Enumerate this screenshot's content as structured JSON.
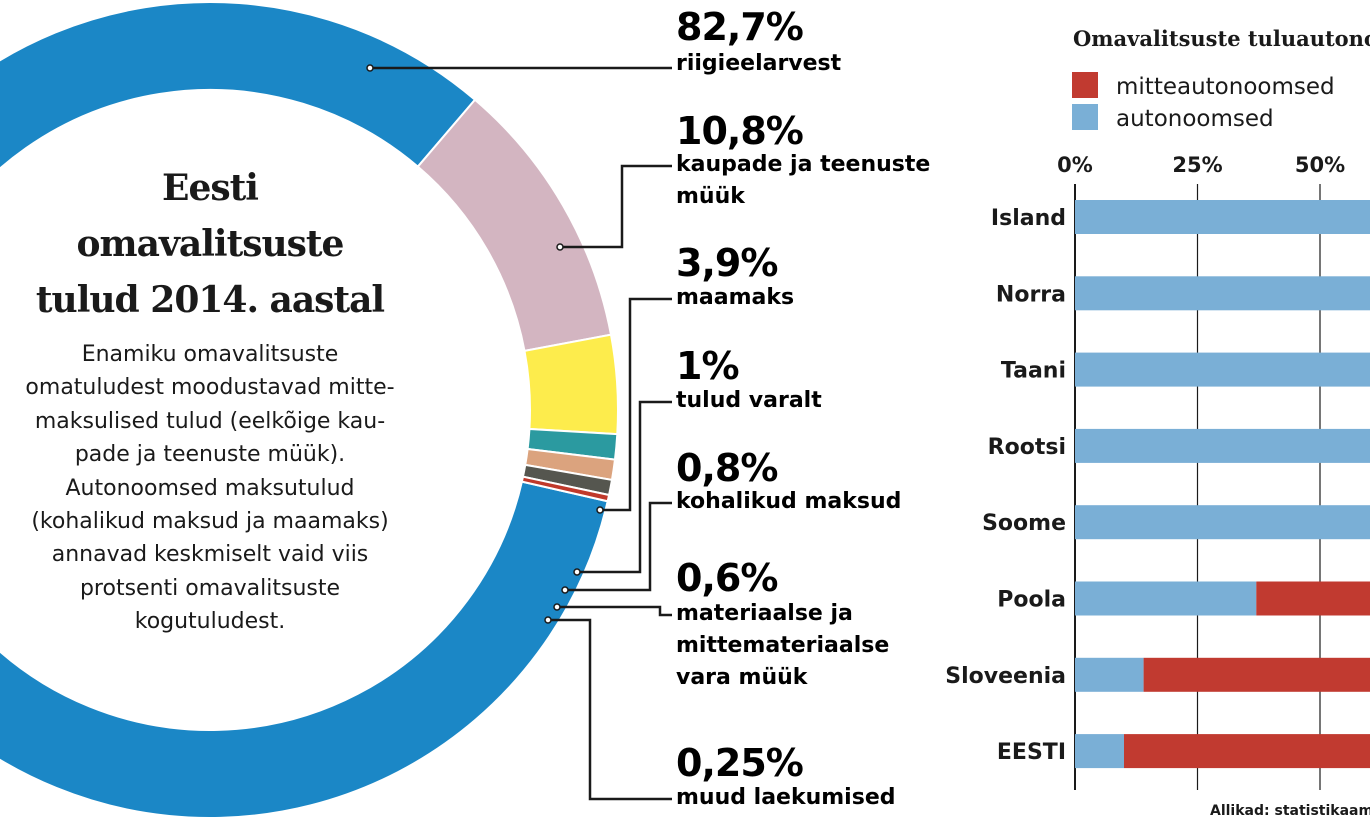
{
  "donut": {
    "title_lines": [
      "Eesti",
      "omavalitsuste",
      "tulud 2014. aastal"
    ],
    "description": "Enamiku omavalitsuste omatuludest moodustavad mitte-maksulised tulud (eelkõige kaupade ja teenuste müük). Autonoomsed maksutulud (kohalikud maksud ja maamaks) annavad keskmiselt vaid viis protsenti omavalitsuste kogutuludest.",
    "description_lines": [
      "Enamiku omavalitsuste",
      "omatuludest moodustavad mitte-",
      "maksulised tulud (eelkõige kau-",
      "pade ja teenuste müük).",
      "Autonoomsed maksutulud",
      "(kohalikud maksud ja maamaks)",
      "annavad keskmiselt vaid viis",
      "protsenti omavalitsuste",
      "kogutuludest."
    ]
  },
  "bar": {
    "title": "Omavalitsuste tuluautonoomsus",
    "source": "Allikad: statistikaamet",
    "ticks": [
      "0%",
      "25%",
      "50%"
    ]
  },
  "chart_data": [
    {
      "type": "pie",
      "title": "Eesti omavalitsuste tulud 2014. aastal",
      "slices": [
        {
          "label": "riigieelarvest",
          "value_text": "82,7%",
          "value": 82.7,
          "color": "#1b87c6"
        },
        {
          "label": "kaupade ja teenuste müük",
          "value_text": "10,8%",
          "value": 10.8,
          "color": "#d3b5c1"
        },
        {
          "label": "maamaks",
          "value_text": "3,9%",
          "value": 3.9,
          "color": "#fdec4c"
        },
        {
          "label": "tulud varalt",
          "value_text": "1%",
          "value": 1.0,
          "color": "#2b9aa0"
        },
        {
          "label": "kohalikud maksud",
          "value_text": "0,8%",
          "value": 0.8,
          "color": "#dba37e"
        },
        {
          "label": "materiaalse ja mittemateriaalse vara müük",
          "value_text": "0,6%",
          "value": 0.6,
          "color": "#55564f"
        },
        {
          "label": "muud laekumised",
          "value_text": "0,25%",
          "value": 0.25,
          "color": "#c0392b"
        }
      ]
    },
    {
      "type": "bar",
      "title": "Omavalitsuste tuluautonoomsus",
      "orientation": "horizontal",
      "stacked": true,
      "categories": [
        "Island",
        "Norra",
        "Taani",
        "Rootsi",
        "Soome",
        "Poola",
        "Sloveenia",
        "EESTI"
      ],
      "xlim": [
        0,
        100
      ],
      "series": [
        {
          "name": "autonoomsed",
          "color": "#7aafd6",
          "values": [
            100,
            100,
            100,
            100,
            100,
            37,
            14,
            10
          ]
        },
        {
          "name": "mitteautonoomsed",
          "color": "#c13a30",
          "values": [
            0,
            0,
            0,
            0,
            0,
            63,
            86,
            90
          ]
        }
      ]
    }
  ]
}
